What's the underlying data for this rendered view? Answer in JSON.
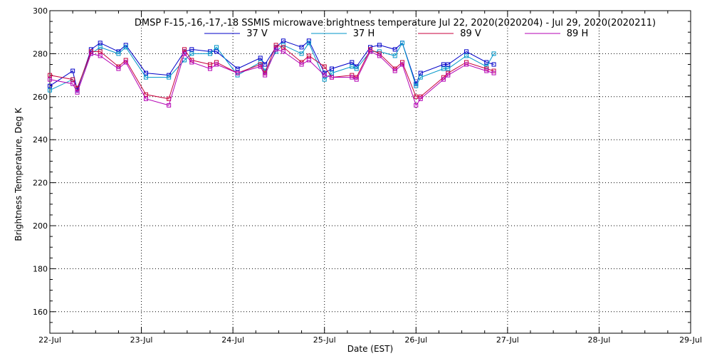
{
  "chart_data": {
    "type": "line",
    "title": "DMSP F-15,-16,-17,-18 SSMIS microwave brightness temperature Jul 22, 2020(2020204) - Jul 29, 2020(2020211)",
    "xlabel": "Date (EST)",
    "ylabel": "Brightness Temperature, Deg K",
    "xlim": [
      0,
      7
    ],
    "ylim": [
      150,
      300
    ],
    "x_ticks": [
      0,
      1,
      2,
      3,
      4,
      5,
      6,
      7
    ],
    "x_tick_labels": [
      "22-Jul",
      "23-Jul",
      "24-Jul",
      "25-Jul",
      "26-Jul",
      "27-Jul",
      "28-Jul",
      "29-Jul"
    ],
    "y_ticks": [
      160,
      180,
      200,
      220,
      240,
      260,
      280,
      300
    ],
    "y_tick_labels": [
      "160",
      "180",
      "200",
      "220",
      "240",
      "260",
      "280",
      "300"
    ],
    "grid": true,
    "legend_position": "top-center",
    "series": [
      {
        "name": "37 V",
        "color": "#0000c8",
        "x": [
          0,
          0.25,
          0.3,
          0.45,
          0.55,
          0.75,
          0.83,
          1.05,
          1.3,
          1.47,
          1.55,
          1.75,
          1.82,
          2.05,
          2.3,
          2.35,
          2.47,
          2.55,
          2.75,
          2.83,
          3.0,
          3.08,
          3.3,
          3.35,
          3.5,
          3.6,
          3.77,
          3.85,
          4.0,
          4.05,
          4.3,
          4.35,
          4.55,
          4.77,
          4.85
        ],
        "y": [
          265,
          272,
          263,
          282,
          285,
          281,
          284,
          271,
          270,
          281,
          282,
          281,
          281,
          273,
          278,
          275,
          283,
          286,
          283,
          286,
          271,
          273,
          276,
          274,
          283,
          284,
          282,
          285,
          266,
          271,
          275,
          275,
          281,
          276,
          275
        ]
      },
      {
        "name": "37 H",
        "color": "#0096c8",
        "x": [
          0,
          0.25,
          0.3,
          0.45,
          0.55,
          0.75,
          0.83,
          1.05,
          1.3,
          1.47,
          1.55,
          1.75,
          1.82,
          2.05,
          2.3,
          2.35,
          2.47,
          2.55,
          2.75,
          2.83,
          3.0,
          3.08,
          3.3,
          3.35,
          3.5,
          3.6,
          3.77,
          3.85,
          4.0,
          4.05,
          4.3,
          4.35,
          4.55,
          4.77,
          4.85
        ],
        "y": [
          263,
          268,
          264,
          280,
          283,
          280,
          283,
          269,
          269,
          277,
          280,
          280,
          283,
          270,
          276,
          272,
          281,
          284,
          280,
          285,
          268,
          271,
          274,
          273,
          281,
          281,
          279,
          285,
          265,
          269,
          273,
          273,
          279,
          274,
          280
        ]
      },
      {
        "name": "89 V",
        "color": "#c8003c",
        "x": [
          0,
          0.25,
          0.3,
          0.45,
          0.55,
          0.75,
          0.83,
          1.05,
          1.3,
          1.47,
          1.55,
          1.75,
          1.82,
          2.05,
          2.3,
          2.35,
          2.47,
          2.55,
          2.75,
          2.83,
          3.0,
          3.08,
          3.3,
          3.35,
          3.5,
          3.6,
          3.77,
          3.85,
          4.0,
          4.05,
          4.3,
          4.35,
          4.55,
          4.77,
          4.85
        ],
        "y": [
          270,
          268,
          264,
          281,
          281,
          274,
          277,
          261,
          259,
          282,
          277,
          275,
          276,
          271,
          275,
          271,
          284,
          283,
          276,
          279,
          274,
          269,
          270,
          269,
          282,
          280,
          273,
          276,
          260,
          260,
          269,
          271,
          276,
          273,
          272
        ]
      },
      {
        "name": "89 H",
        "color": "#b400b4",
        "x": [
          0,
          0.25,
          0.3,
          0.45,
          0.55,
          0.75,
          0.83,
          1.05,
          1.3,
          1.47,
          1.55,
          1.75,
          1.82,
          2.05,
          2.3,
          2.35,
          2.47,
          2.55,
          2.75,
          2.83,
          3.0,
          3.08,
          3.3,
          3.35,
          3.5,
          3.6,
          3.77,
          3.85,
          4.0,
          4.05,
          4.3,
          4.35,
          4.55,
          4.77,
          4.85
        ],
        "y": [
          268,
          266,
          262,
          280,
          279,
          273,
          276,
          259,
          256,
          280,
          276,
          273,
          275,
          271,
          274,
          270,
          282,
          281,
          275,
          277,
          270,
          269,
          269,
          268,
          281,
          279,
          272,
          275,
          256,
          259,
          268,
          270,
          275,
          272,
          271
        ]
      }
    ]
  }
}
